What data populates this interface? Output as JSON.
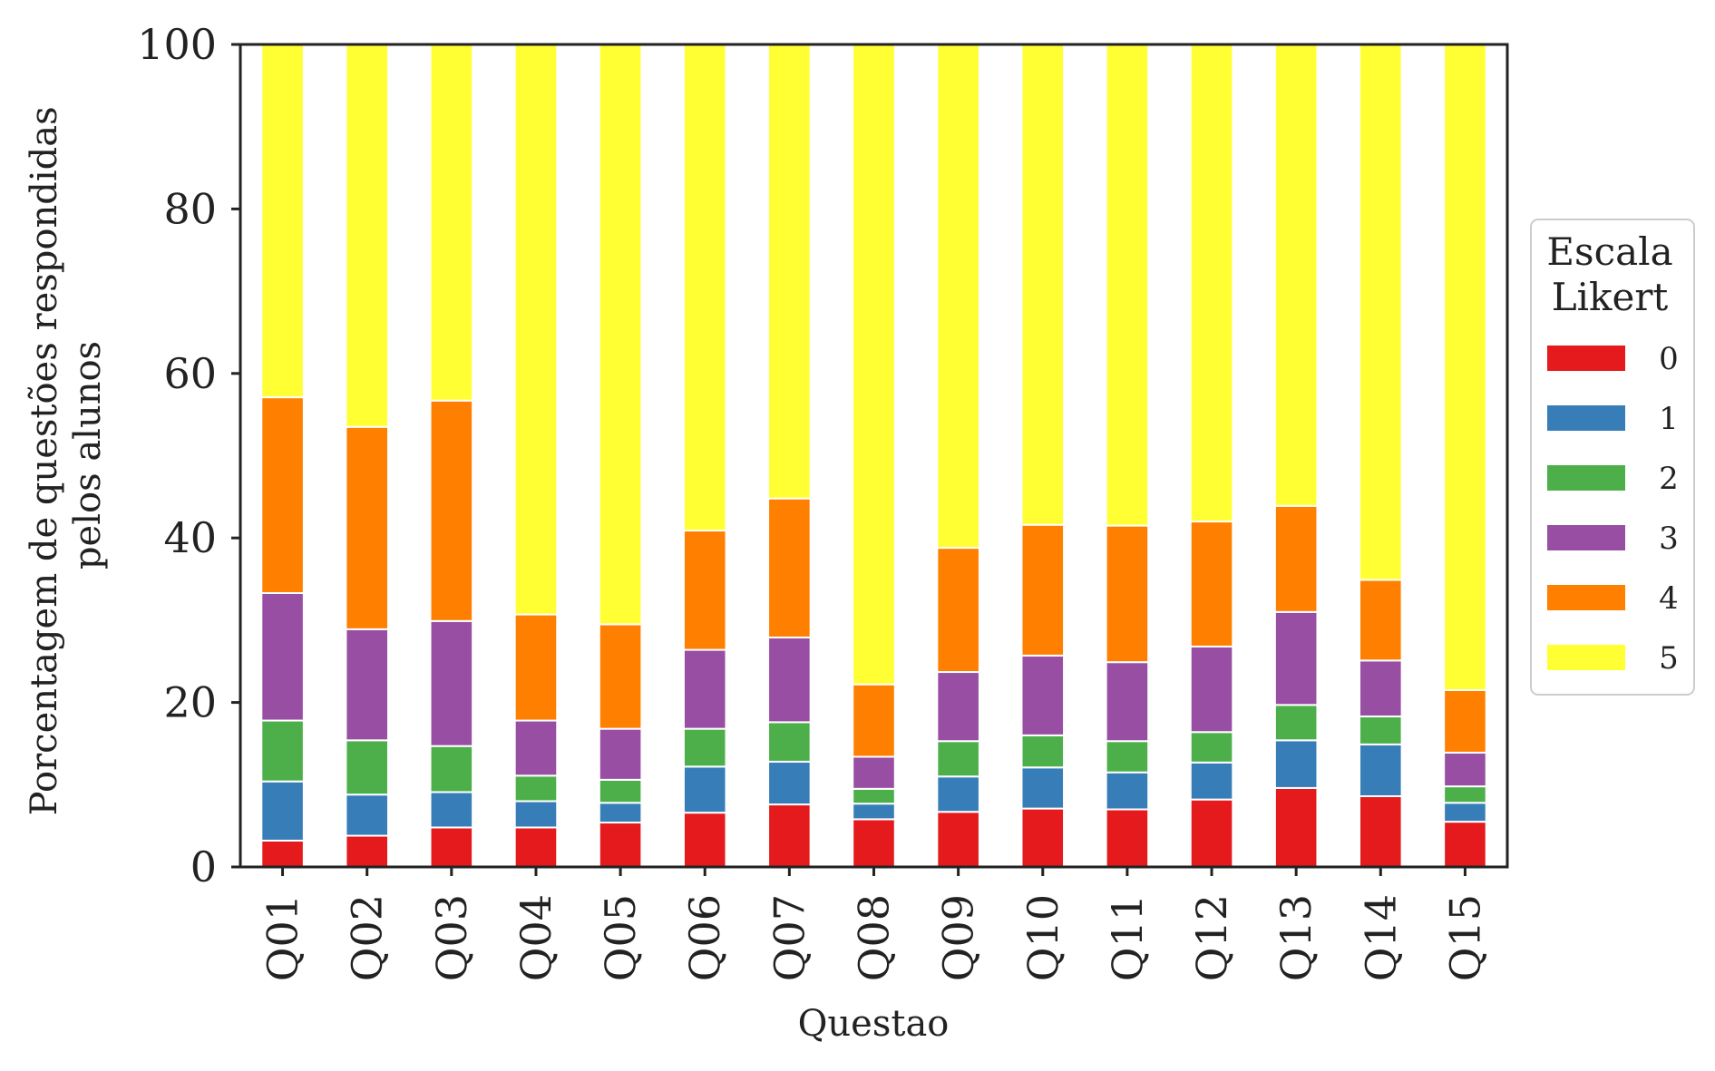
{
  "chart_data": {
    "type": "bar",
    "stacked": true,
    "title": "",
    "xlabel": "Questao",
    "ylabel_lines": [
      "Porcentagem de questões respondidas",
      "pelos alunos"
    ],
    "ylim": [
      0,
      100
    ],
    "yticks": [
      0,
      20,
      40,
      60,
      80,
      100
    ],
    "grid": false,
    "legend": {
      "title_lines": [
        "Escala",
        "Likert"
      ],
      "placement": "right"
    },
    "categories": [
      "Q01",
      "Q02",
      "Q03",
      "Q04",
      "Q05",
      "Q06",
      "Q07",
      "Q08",
      "Q09",
      "Q10",
      "Q11",
      "Q12",
      "Q13",
      "Q14",
      "Q15"
    ],
    "series": [
      {
        "name": "0",
        "color": "#e41a1c",
        "values": [
          3.2,
          3.8,
          4.8,
          4.8,
          5.4,
          6.6,
          7.6,
          5.8,
          6.7,
          7.1,
          7.0,
          8.2,
          9.6,
          8.6,
          5.5
        ]
      },
      {
        "name": "1",
        "color": "#377eb8",
        "values": [
          7.2,
          5.0,
          4.3,
          3.2,
          2.4,
          5.6,
          5.2,
          1.9,
          4.3,
          5.0,
          4.5,
          4.5,
          5.8,
          6.3,
          2.3
        ]
      },
      {
        "name": "2",
        "color": "#4daf4a",
        "values": [
          7.4,
          6.6,
          5.6,
          3.1,
          2.8,
          4.6,
          4.8,
          1.8,
          4.3,
          3.9,
          3.8,
          3.7,
          4.3,
          3.4,
          2.0
        ]
      },
      {
        "name": "3",
        "color": "#984ea3",
        "values": [
          15.5,
          13.5,
          15.2,
          6.7,
          6.2,
          9.6,
          10.3,
          3.9,
          8.4,
          9.7,
          9.6,
          10.4,
          11.3,
          6.8,
          4.1
        ]
      },
      {
        "name": "4",
        "color": "#ff7f00",
        "values": [
          23.8,
          24.6,
          26.8,
          12.9,
          12.7,
          14.5,
          16.9,
          8.8,
          15.1,
          15.9,
          16.6,
          15.2,
          12.9,
          9.8,
          7.6
        ]
      },
      {
        "name": "5",
        "color": "#ffff33",
        "values": [
          42.9,
          46.5,
          43.3,
          69.3,
          70.5,
          59.1,
          55.2,
          77.8,
          61.2,
          58.4,
          58.5,
          58.0,
          56.1,
          65.1,
          78.5
        ]
      }
    ]
  }
}
